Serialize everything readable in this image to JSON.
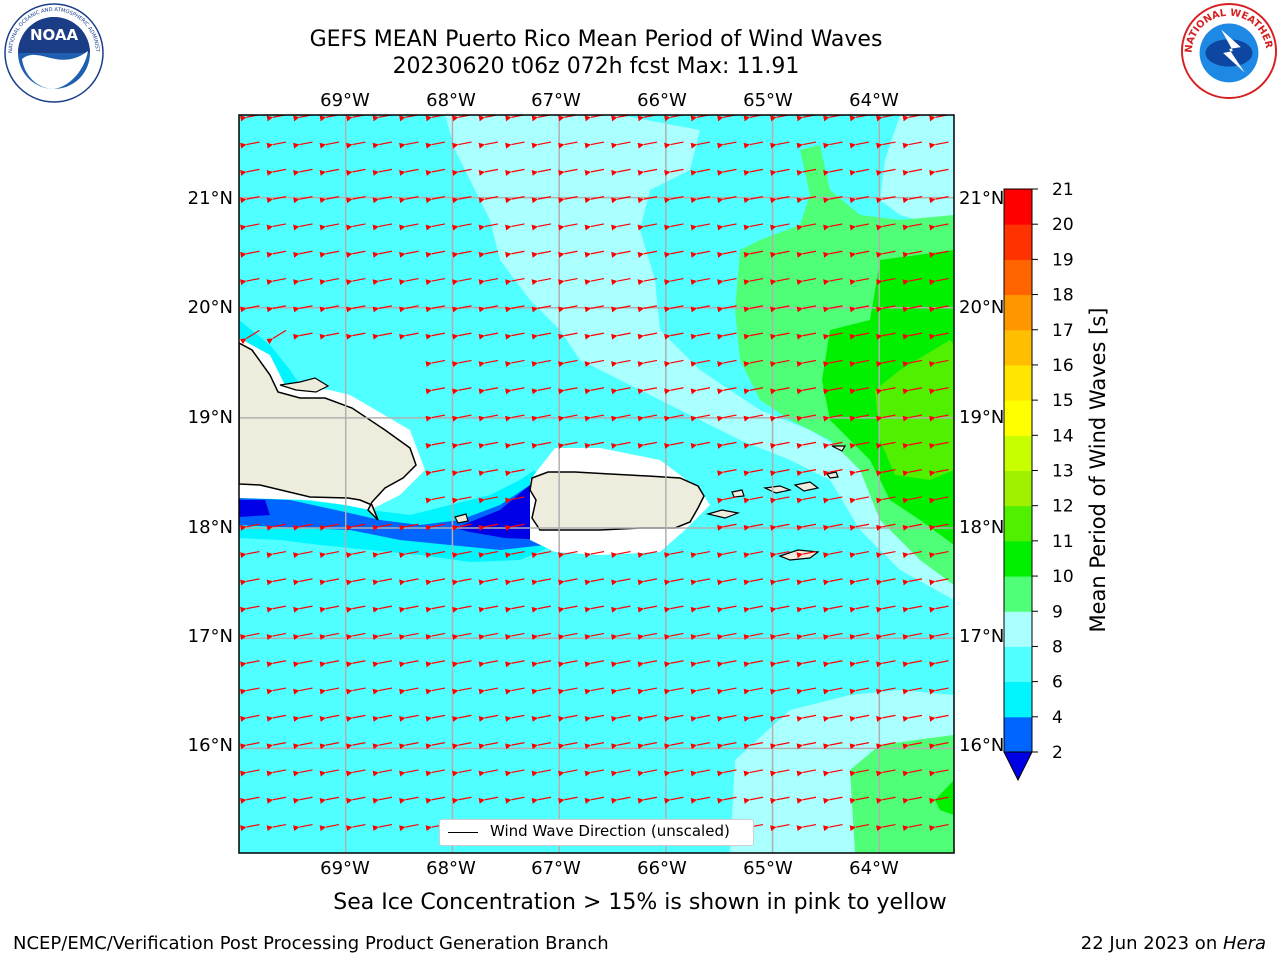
{
  "header": {
    "title_line1": "GEFS MEAN Puerto Rico Mean Period of Wind Waves",
    "title_line2": "20230620 t06z 072h fcst   Max: 11.91"
  },
  "logos": {
    "noaa": {
      "text": "NOAA",
      "ring_text": "NATIONAL OCEANIC AND ATMOSPHERIC ADMINISTRATION · U.S. DEPARTMENT OF COMMERCE"
    },
    "nws": {
      "ring_text": "NATIONAL WEATHER SERVICE"
    }
  },
  "map": {
    "lon_labels": [
      "69°W",
      "68°W",
      "67°W",
      "66°W",
      "65°W",
      "64°W"
    ],
    "lat_labels": [
      "21°N",
      "20°N",
      "19°N",
      "18°N",
      "17°N",
      "16°N"
    ],
    "lon_range": [
      -70.0,
      -63.3
    ],
    "lat_range": [
      15.05,
      21.75
    ],
    "wind_wave_direction": "toward west (easterly trade flow), slight southward tilt",
    "legend_label": "Wind Wave Direction (unscaled)",
    "arrow_color": "#ff0000",
    "land_color": "#eeecdc"
  },
  "colorbar": {
    "title": "Mean Period of Wind Waves [s]",
    "ticks": [
      "2",
      "4",
      "6",
      "8",
      "9",
      "10",
      "11",
      "12",
      "13",
      "14",
      "15",
      "16",
      "17",
      "18",
      "19",
      "20",
      "21"
    ],
    "colors": [
      "#0064ff",
      "#00f5ff",
      "#50ffff",
      "#aaffff",
      "#50ff78",
      "#00f000",
      "#50f000",
      "#a0f000",
      "#c8ff00",
      "#ffff00",
      "#ffe600",
      "#ffbe00",
      "#ff9600",
      "#ff6400",
      "#ff3200",
      "#ff0000"
    ],
    "under_color": "#0000e6"
  },
  "footer": {
    "subtitle": "Sea Ice Concentration > 15% is shown in pink to yellow",
    "left": "NCEP/EMC/Verification Post Processing Product Generation Branch",
    "right_date": "22 Jun 2023 on ",
    "right_host": "Hera"
  }
}
